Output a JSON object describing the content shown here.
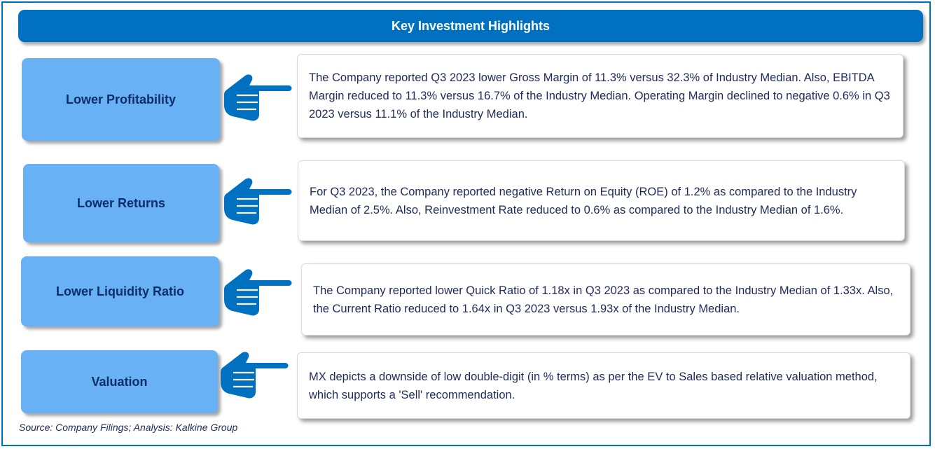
{
  "header": {
    "title": "Key Investment Highlights"
  },
  "highlights": [
    {
      "label": "Lower Profitability",
      "text": "The Company reported Q3 2023  lower Gross Margin of 11.3% versus 32.3% of Industry Median. Also, EBITDA Margin reduced to 11.3% versus 16.7% of the Industry Median. Operating Margin declined to negative 0.6% in Q3 2023 versus 11.1% of the Industry Median."
    },
    {
      "label": "Lower Returns",
      "text": "For Q3 2023, the Company reported  negative Return on Equity (ROE) of  1.2%  as compared to the Industry Median of 2.5%. Also, Reinvestment Rate reduced to  0.6% as compared to the Industry Median of 1.6%."
    },
    {
      "label": "Lower Liquidity Ratio",
      "text": "The Company reported lower Quick Ratio of 1.18x in Q3 2023 as compared to the Industry Median of 1.33x. Also, the Current Ratio reduced to 1.64x in Q3 2023 versus 1.93x of the Industry Median."
    },
    {
      "label": "Valuation",
      "text": "MX  depicts a downside of low double-digit (in % terms) as per the EV to Sales  based relative valuation method, which supports a 'Sell' recommendation."
    }
  ],
  "source": "Source: Company Filings; Analysis: Kalkine Group",
  "colors": {
    "accent": "#0070c0",
    "label_fill": "#69b1f5",
    "label_text": "#0c2d6b"
  }
}
